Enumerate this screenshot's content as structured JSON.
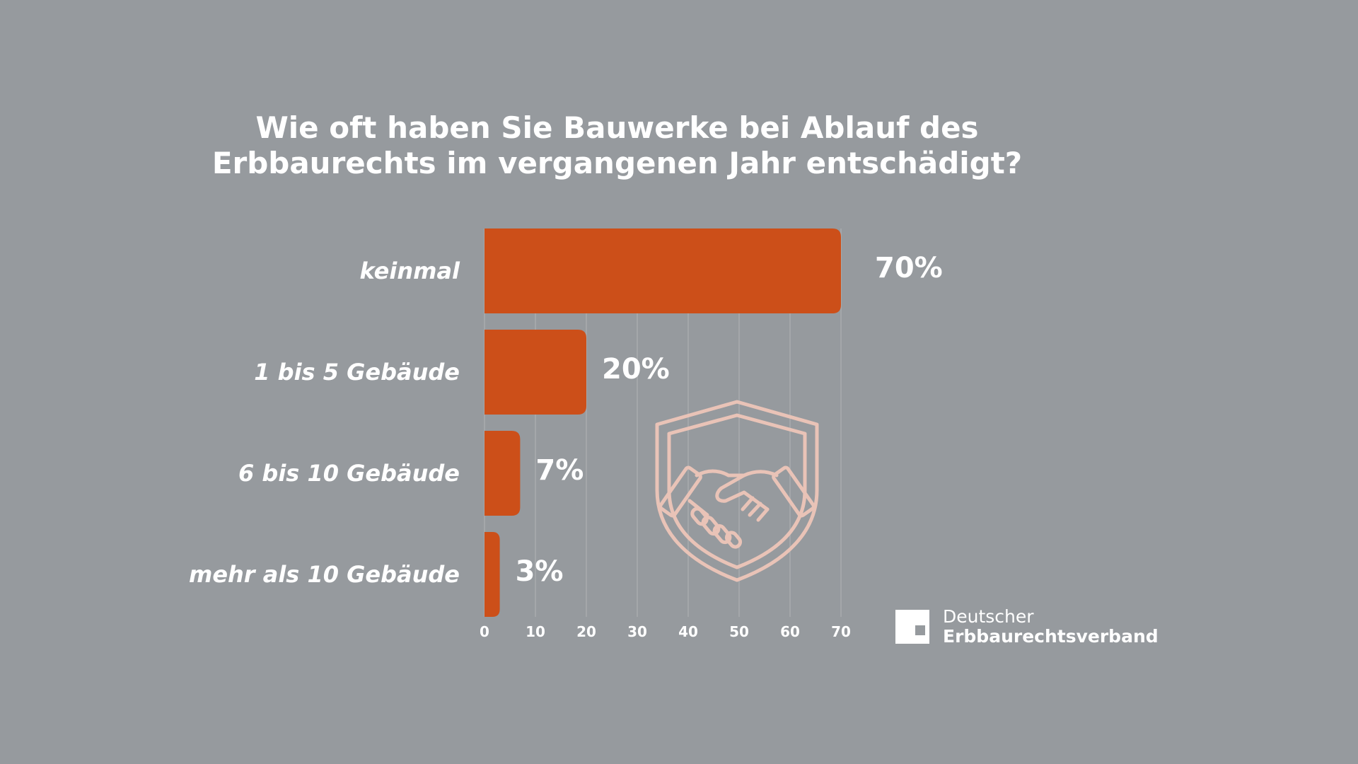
{
  "chart_data": {
    "type": "bar",
    "orientation": "horizontal",
    "title_lines": [
      "Wie oft haben Sie Bauwerke bei Ablauf des",
      "Erbbaurechts im vergangenen Jahr entschädigt?"
    ],
    "categories": [
      "keinmal",
      "1 bis 5 Gebäude",
      "6 bis 10 Gebäude",
      "mehr als 10 Gebäude"
    ],
    "values": [
      70,
      20,
      7,
      3
    ],
    "value_labels": [
      "70%",
      "20%",
      "7%",
      "3%"
    ],
    "xlim": [
      0,
      70
    ],
    "x_ticks": [
      0,
      10,
      20,
      30,
      40,
      50,
      60,
      70
    ],
    "grid": true,
    "bar_color": "#cc4f19",
    "grid_color": "#a8abae"
  },
  "decoration": {
    "icon": "handshake-shield-icon",
    "icon_color": "#e9c3b7"
  },
  "logo": {
    "line1": "Deutscher",
    "line2": "Erbbaurechtsverband"
  },
  "colors": {
    "background": "#969a9e",
    "text": "#ffffff"
  }
}
